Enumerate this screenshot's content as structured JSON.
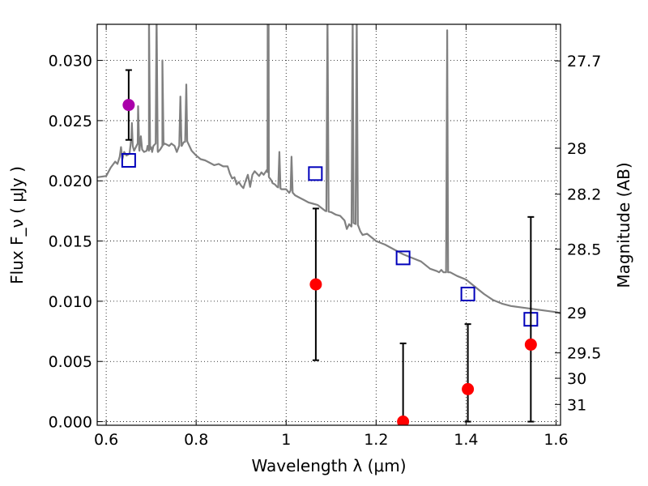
{
  "chart_data": {
    "type": "scatter",
    "xlabel": "Wavelength  λ (μm)",
    "ylabel": "Flux  F_ν  ( μJy )",
    "ylabel_right": "Magnitude (AB)",
    "xlim": [
      0.58,
      1.61
    ],
    "ylim": [
      -0.0003,
      0.033
    ],
    "grid": true,
    "x_ticks": [
      0.6,
      0.8,
      1.0,
      1.2,
      1.4,
      1.6
    ],
    "x_tick_labels": [
      "0.6",
      "0.8",
      "1",
      "1.2",
      "1.4",
      "1.6"
    ],
    "y_ticks": [
      0.0,
      0.005,
      0.01,
      0.015,
      0.02,
      0.025,
      0.03
    ],
    "y_tick_labels": [
      "0.000",
      "0.005",
      "0.010",
      "0.015",
      "0.020",
      "0.025",
      "0.030"
    ],
    "right_ticks": [
      {
        "label": "27.7",
        "flux": 0.02996
      },
      {
        "label": "28",
        "flux": 0.02271
      },
      {
        "label": "28.2",
        "flux": 0.01889
      },
      {
        "label": "28.5",
        "flux": 0.01433
      },
      {
        "label": "29",
        "flux": 0.00905
      },
      {
        "label": "29.5",
        "flux": 0.00571
      },
      {
        "label": "30",
        "flux": 0.0036
      },
      {
        "label": "31",
        "flux": 0.00143
      }
    ],
    "model_spectrum": {
      "color": "#808080",
      "points": [
        [
          0.58,
          0.0203
        ],
        [
          0.6,
          0.0204
        ],
        [
          0.61,
          0.0211
        ],
        [
          0.62,
          0.0216
        ],
        [
          0.625,
          0.0214
        ],
        [
          0.63,
          0.022
        ],
        [
          0.633,
          0.0228
        ],
        [
          0.636,
          0.0218
        ],
        [
          0.64,
          0.0224
        ],
        [
          0.645,
          0.0221
        ],
        [
          0.65,
          0.0222
        ],
        [
          0.652,
          0.0223
        ],
        [
          0.656,
          0.0236
        ],
        [
          0.659,
          0.0229
        ],
        [
          0.662,
          0.0225
        ],
        [
          0.666,
          0.0228
        ],
        [
          0.67,
          0.0231
        ],
        [
          0.674,
          0.0225
        ],
        [
          0.677,
          0.0237
        ],
        [
          0.68,
          0.0226
        ],
        [
          0.684,
          0.0224
        ],
        [
          0.69,
          0.0225
        ],
        [
          0.692,
          0.0229
        ],
        [
          0.695,
          0.0225
        ],
        [
          0.7,
          0.0228
        ],
        [
          0.702,
          0.0224
        ],
        [
          0.705,
          0.0229
        ],
        [
          0.71,
          0.0231
        ],
        [
          0.715,
          0.0224
        ],
        [
          0.72,
          0.0226
        ],
        [
          0.725,
          0.0229
        ],
        [
          0.73,
          0.0231
        ],
        [
          0.74,
          0.0229
        ],
        [
          0.745,
          0.0231
        ],
        [
          0.752,
          0.0229
        ],
        [
          0.757,
          0.0224
        ],
        [
          0.762,
          0.0229
        ],
        [
          0.768,
          0.0229
        ],
        [
          0.772,
          0.0232
        ],
        [
          0.78,
          0.0233
        ],
        [
          0.79,
          0.0225
        ],
        [
          0.8,
          0.0221
        ],
        [
          0.81,
          0.0218
        ],
        [
          0.82,
          0.0217
        ],
        [
          0.83,
          0.0215
        ],
        [
          0.84,
          0.0213
        ],
        [
          0.85,
          0.0214
        ],
        [
          0.86,
          0.0212
        ],
        [
          0.87,
          0.0212
        ],
        [
          0.875,
          0.0206
        ],
        [
          0.88,
          0.0202
        ],
        [
          0.885,
          0.0203
        ],
        [
          0.89,
          0.0197
        ],
        [
          0.895,
          0.0199
        ],
        [
          0.9,
          0.0196
        ],
        [
          0.905,
          0.0194
        ],
        [
          0.91,
          0.02
        ],
        [
          0.915,
          0.0205
        ],
        [
          0.92,
          0.0195
        ],
        [
          0.925,
          0.0205
        ],
        [
          0.93,
          0.0208
        ],
        [
          0.935,
          0.0206
        ],
        [
          0.94,
          0.0204
        ],
        [
          0.945,
          0.0207
        ],
        [
          0.95,
          0.0205
        ],
        [
          0.957,
          0.0209
        ],
        [
          0.962,
          0.0203
        ],
        [
          0.966,
          0.0201
        ],
        [
          0.97,
          0.0198
        ],
        [
          0.975,
          0.0197
        ],
        [
          0.98,
          0.0195
        ],
        [
          0.99,
          0.0193
        ],
        [
          1.0,
          0.0193
        ],
        [
          1.007,
          0.019
        ],
        [
          1.01,
          0.0192
        ],
        [
          1.02,
          0.0188
        ],
        [
          1.03,
          0.0186
        ],
        [
          1.04,
          0.0184
        ],
        [
          1.05,
          0.0182
        ],
        [
          1.06,
          0.0181
        ],
        [
          1.07,
          0.018
        ],
        [
          1.08,
          0.0177
        ],
        [
          1.087,
          0.0175
        ],
        [
          1.1,
          0.0174
        ],
        [
          1.11,
          0.0172
        ],
        [
          1.12,
          0.0171
        ],
        [
          1.13,
          0.0167
        ],
        [
          1.135,
          0.016
        ],
        [
          1.14,
          0.0164
        ],
        [
          1.145,
          0.0162
        ],
        [
          1.15,
          0.0165
        ],
        [
          1.16,
          0.0163
        ],
        [
          1.165,
          0.0158
        ],
        [
          1.17,
          0.0155
        ],
        [
          1.18,
          0.0156
        ],
        [
          1.19,
          0.0153
        ],
        [
          1.2,
          0.015
        ],
        [
          1.22,
          0.0147
        ],
        [
          1.24,
          0.0143
        ],
        [
          1.26,
          0.0139
        ],
        [
          1.28,
          0.0136
        ],
        [
          1.3,
          0.0133
        ],
        [
          1.32,
          0.0127
        ],
        [
          1.335,
          0.0125
        ],
        [
          1.34,
          0.0124
        ],
        [
          1.345,
          0.0126
        ],
        [
          1.35,
          0.0124
        ],
        [
          1.36,
          0.0124
        ],
        [
          1.365,
          0.0124
        ],
        [
          1.38,
          0.0121
        ],
        [
          1.4,
          0.0118
        ],
        [
          1.42,
          0.0112
        ],
        [
          1.44,
          0.0106
        ],
        [
          1.46,
          0.0101
        ],
        [
          1.48,
          0.0098
        ],
        [
          1.5,
          0.0096
        ],
        [
          1.52,
          0.0095
        ],
        [
          1.54,
          0.0094
        ],
        [
          1.56,
          0.0093
        ],
        [
          1.58,
          0.0092
        ],
        [
          1.6,
          0.0091
        ],
        [
          1.61,
          0.009
        ]
      ],
      "emission_lines": [
        {
          "x": 0.657,
          "peak": 0.0248
        },
        {
          "x": 0.671,
          "peak": 0.0262
        },
        {
          "x": 0.695,
          "peak": 0.034
        },
        {
          "x": 0.712,
          "peak": 0.034
        },
        {
          "x": 0.725,
          "peak": 0.03
        },
        {
          "x": 0.778,
          "peak": 0.028
        },
        {
          "x": 0.765,
          "peak": 0.027
        },
        {
          "x": 0.959,
          "peak": 0.034
        },
        {
          "x": 0.961,
          "peak": 0.034
        },
        {
          "x": 0.985,
          "peak": 0.0224
        },
        {
          "x": 1.012,
          "peak": 0.022
        },
        {
          "x": 1.092,
          "peak": 0.034
        },
        {
          "x": 1.148,
          "peak": 0.034
        },
        {
          "x": 1.157,
          "peak": 0.034
        },
        {
          "x": 1.358,
          "peak": 0.0325
        }
      ]
    },
    "series": [
      {
        "marker": "square",
        "color": "#0000bb",
        "points": [
          [
            0.65,
            0.0217
          ],
          [
            1.065,
            0.0206
          ],
          [
            1.26,
            0.0136
          ],
          [
            1.404,
            0.0106
          ],
          [
            1.544,
            0.0085
          ]
        ]
      },
      {
        "marker": "circle",
        "color": "#ff0000",
        "points": [
          {
            "x": 1.066,
            "y": 0.0114,
            "err_low": 0.0051,
            "err_high": 0.0177
          },
          {
            "x": 1.26,
            "y": 0.0,
            "err_low": 0.0,
            "err_high": 0.0065
          },
          {
            "x": 1.404,
            "y": 0.0027,
            "err_low": 0.0,
            "err_high": 0.0081
          },
          {
            "x": 1.544,
            "y": 0.0064,
            "err_low": 0.0,
            "err_high": 0.017
          }
        ]
      },
      {
        "marker": "circle",
        "color": "#aa00aa",
        "points": [
          {
            "x": 0.65,
            "y": 0.0263,
            "err_low": 0.0234,
            "err_high": 0.0292
          }
        ]
      }
    ]
  }
}
